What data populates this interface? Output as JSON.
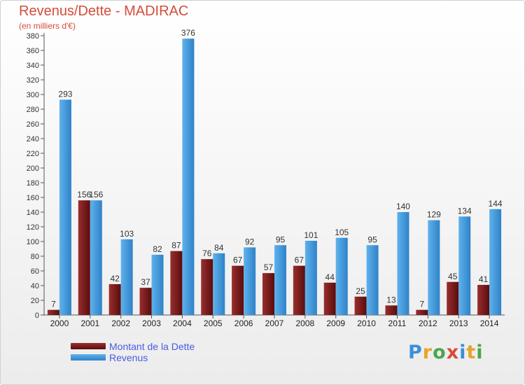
{
  "chart_data": {
    "type": "bar",
    "title": "Revenus/Dette - MADIRAC",
    "subtitle": "(en milliers d'€)",
    "categories": [
      "2000",
      "2001",
      "2002",
      "2003",
      "2004",
      "2005",
      "2006",
      "2007",
      "2008",
      "2009",
      "2010",
      "2011",
      "2012",
      "2013",
      "2014"
    ],
    "series": [
      {
        "name": "Montant de la Dette",
        "color": "#7a1a1a",
        "values": [
          7,
          156,
          42,
          37,
          87,
          76,
          67,
          57,
          67,
          44,
          25,
          13,
          7,
          45,
          41
        ]
      },
      {
        "name": "Revenus",
        "color": "#3d96db",
        "values": [
          293,
          156,
          103,
          82,
          376,
          84,
          92,
          95,
          101,
          105,
          95,
          140,
          129,
          134,
          144
        ]
      }
    ],
    "ylim": [
      0,
      380
    ],
    "ytick_step": 20,
    "grid": false,
    "legend_position": "bottom-left"
  },
  "logo": {
    "text": "Proxiti",
    "colors": [
      "#3a8fd8",
      "#e8a32b",
      "#4aa64a",
      "#d94a3a",
      "#3a8fd8",
      "#e8a32b",
      "#4aa64a"
    ]
  }
}
